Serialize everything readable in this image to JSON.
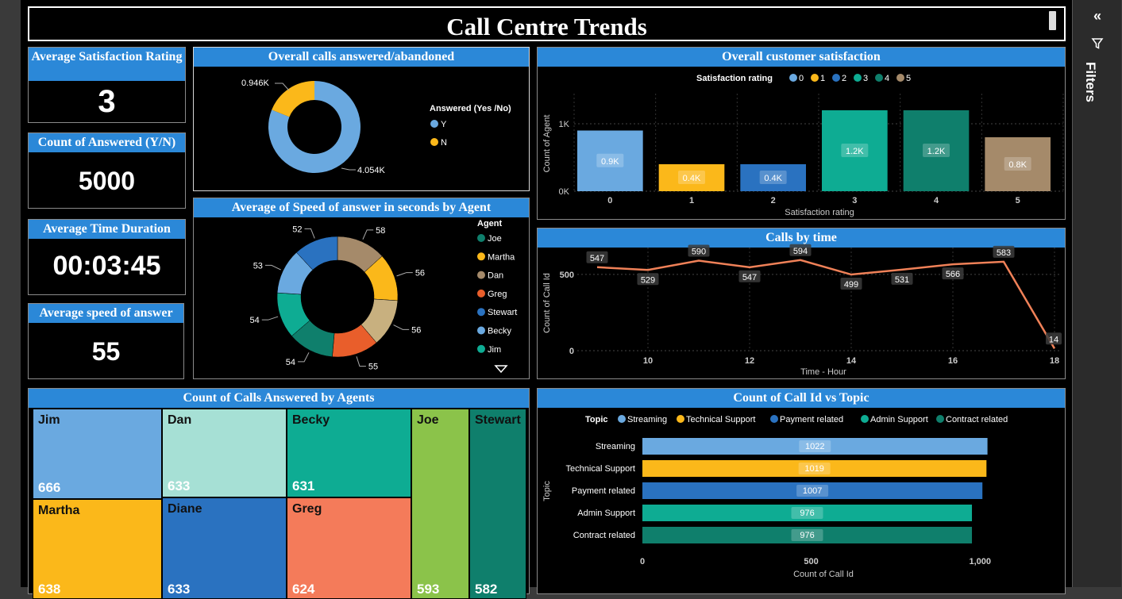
{
  "title": "Call Centre Trends",
  "kpis": {
    "satisfaction": {
      "label": "Average Satisfaction Rating",
      "value": "3"
    },
    "answered": {
      "label": "Count of Answered (Y/N)",
      "value": "5000"
    },
    "duration": {
      "label": "Average Time Duration",
      "value": "00:03:45"
    },
    "speed": {
      "label": "Average speed of answer",
      "value": "55"
    }
  },
  "filters_pane": {
    "label": "Filters",
    "collapse_icon": "double-chevron-left-icon",
    "filter_icon": "funnel-icon"
  },
  "colors": {
    "header": "#2b88d8",
    "blue_light": "#6aa9e0",
    "yellow": "#fbb81a",
    "blue_dark": "#2a72c0",
    "teal": "#0eac93",
    "teal_dark": "#0f7f6c",
    "tan": "#a58a6a",
    "orange_line": "#f08158"
  },
  "charts": {
    "answered_donut": {
      "title": "Overall calls answered/abandoned",
      "legend_title": "Answered (Yes /No)",
      "chart_data": {
        "type": "pie",
        "categories": [
          "Y",
          "N"
        ],
        "values": [
          4054,
          946
        ],
        "data_labels": [
          "4.054K",
          "0.946K"
        ],
        "colors": [
          "#6aa9e0",
          "#fbb81a"
        ]
      }
    },
    "speed_donut": {
      "title": "Average of Speed of answer in seconds by Agent",
      "legend_title": "Agent",
      "legend_items": [
        "Joe",
        "Martha",
        "Dan",
        "Greg",
        "Stewart",
        "Becky",
        "Jim"
      ],
      "legend_more_icon": "triangle-down-icon",
      "chart_data": {
        "type": "pie",
        "categories": [
          "Dan",
          "Martha",
          "Diane",
          "Greg",
          "Joe",
          "Jim",
          "Becky",
          "Stewart"
        ],
        "values": [
          58,
          56,
          56,
          55,
          54,
          54,
          53,
          52
        ],
        "colors": [
          "#a58a6a",
          "#fbb81a",
          "#c8b07f",
          "#e95e2b",
          "#0f7f6c",
          "#0eac93",
          "#6aa9e0",
          "#2a72c0"
        ]
      }
    },
    "satisfaction_bar": {
      "title": "Overall customer satisfaction",
      "legend_title": "Satisfaction rating",
      "chart_data": {
        "type": "bar",
        "categories": [
          "0",
          "1",
          "2",
          "3",
          "4",
          "5"
        ],
        "values": [
          900,
          400,
          400,
          1200,
          1200,
          800
        ],
        "data_labels": [
          "0.9K",
          "0.4K",
          "0.4K",
          "1.2K",
          "1.2K",
          "0.8K"
        ],
        "colors": [
          "#6aa9e0",
          "#fbb81a",
          "#2a72c0",
          "#0eac93",
          "#0f7f6c",
          "#a58a6a"
        ],
        "xlabel": "Satisfaction rating",
        "ylabel": "Count of Agent",
        "yticks": [
          "0K",
          "1K"
        ],
        "ylim": [
          0,
          1400
        ]
      }
    },
    "calls_by_time": {
      "title": "Calls by time",
      "chart_data": {
        "type": "line",
        "x": [
          9,
          10,
          11,
          12,
          13,
          14,
          15,
          16,
          17,
          18
        ],
        "values": [
          547,
          529,
          590,
          547,
          594,
          499,
          531,
          566,
          583,
          14
        ],
        "xticks": [
          "10",
          "12",
          "14",
          "16",
          "18"
        ],
        "yticks": [
          "0",
          "500"
        ],
        "xlabel": "Time - Hour",
        "ylabel": "Count of Call Id",
        "ylim": [
          0,
          650
        ],
        "color": "#f08158"
      }
    },
    "treemap": {
      "title": "Count of Calls Answered by Agents",
      "chart_data": {
        "type": "treemap",
        "categories": [
          "Jim",
          "Martha",
          "Dan",
          "Diane",
          "Becky",
          "Greg",
          "Joe",
          "Stewart"
        ],
        "values": [
          666,
          638,
          633,
          633,
          631,
          624,
          593,
          582
        ],
        "labels": [
          "666",
          "638",
          "633",
          "633",
          "631",
          "624",
          "593",
          "582"
        ],
        "colors": [
          "#6aa9e0",
          "#fbb81a",
          "#a6e0d5",
          "#2a72c0",
          "#0eac93",
          "#f47b5a",
          "#8bc34a",
          "#0f7f6c"
        ]
      }
    },
    "topic_bar": {
      "title": "Count of Call Id vs Topic",
      "legend_title": "Topic",
      "chart_data": {
        "type": "bar",
        "orientation": "horizontal",
        "categories": [
          "Streaming",
          "Technical Support",
          "Payment related",
          "Admin Support",
          "Contract related"
        ],
        "values": [
          1022,
          1019,
          1007,
          976,
          976
        ],
        "colors": [
          "#6aa9e0",
          "#fbb81a",
          "#2a72c0",
          "#0eac93",
          "#0f7f6c"
        ],
        "xticks": [
          "0",
          "500",
          "1,000"
        ],
        "xlabel": "Count of Call Id",
        "ylabel": "Topic",
        "xlim": [
          0,
          1100
        ]
      }
    }
  }
}
